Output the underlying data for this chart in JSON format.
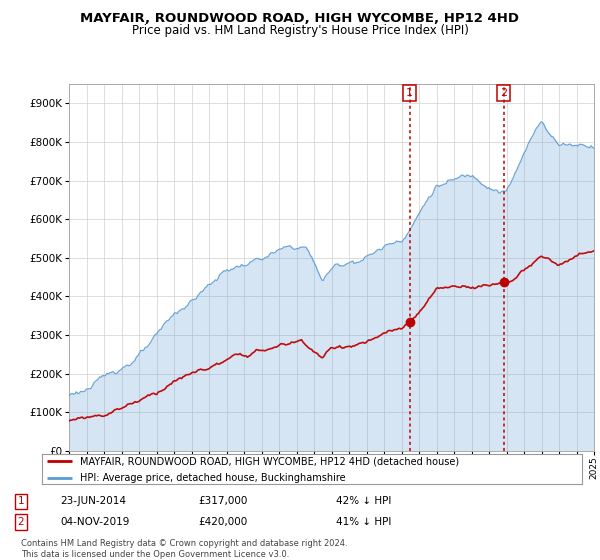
{
  "title": "MAYFAIR, ROUNDWOOD ROAD, HIGH WYCOMBE, HP12 4HD",
  "subtitle": "Price paid vs. HM Land Registry's House Price Index (HPI)",
  "hpi_label": "HPI: Average price, detached house, Buckinghamshire",
  "price_label": "MAYFAIR, ROUNDWOOD ROAD, HIGH WYCOMBE, HP12 4HD (detached house)",
  "sale1_date": "23-JUN-2014",
  "sale1_price": 317000,
  "sale1_note": "42% ↓ HPI",
  "sale2_date": "04-NOV-2019",
  "sale2_price": 420000,
  "sale2_note": "41% ↓ HPI",
  "sale1_year": 2014.47,
  "sale2_year": 2019.83,
  "footer": "Contains HM Land Registry data © Crown copyright and database right 2024.\nThis data is licensed under the Open Government Licence v3.0.",
  "hpi_color": "#5b9bd5",
  "hpi_fill_color": "#daeaf7",
  "price_color": "#c00000",
  "vline_color": "#c00000",
  "background_color": "#ffffff",
  "ylim": [
    0,
    950000
  ],
  "xlim_start": 1995,
  "xlim_end": 2025
}
